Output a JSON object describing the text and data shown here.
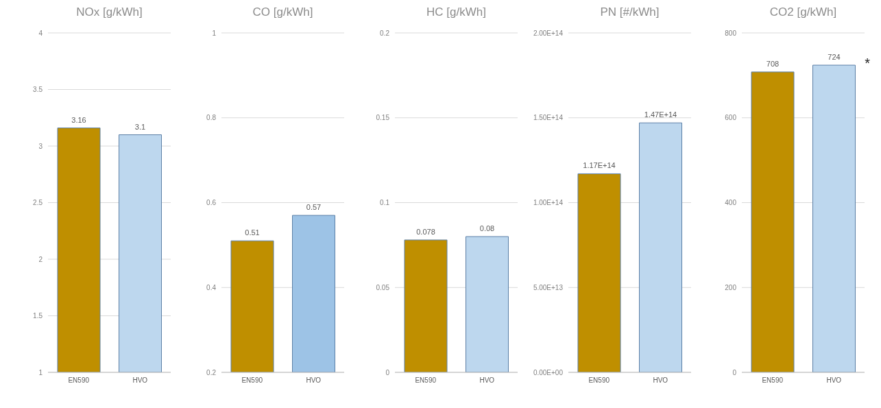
{
  "chart_data": [
    {
      "type": "bar",
      "title": "NOx [g/kWh]",
      "categories": [
        "EN590",
        "HVO"
      ],
      "values": [
        3.16,
        3.1
      ],
      "colors": [
        "#bf8f00",
        "#bdd7ee"
      ],
      "ylim": [
        1,
        4
      ],
      "yticks": [
        1,
        1.5,
        2,
        2.5,
        3,
        3.5,
        4
      ],
      "grid": "y",
      "data_labels": true
    },
    {
      "type": "bar",
      "title": "CO [g/kWh]",
      "categories": [
        "EN590",
        "HVO"
      ],
      "values": [
        0.51,
        0.57
      ],
      "colors": [
        "#bf8f00",
        "#9dc3e6"
      ],
      "ylim": [
        0.2,
        1
      ],
      "yticks": [
        0.2,
        0.4,
        0.6,
        0.8,
        1
      ],
      "grid": "y",
      "data_labels": true
    },
    {
      "type": "bar",
      "title": "HC [g/kWh]",
      "categories": [
        "EN590",
        "HVO"
      ],
      "values": [
        0.078,
        0.08
      ],
      "colors": [
        "#bf8f00",
        "#bdd7ee"
      ],
      "ylim": [
        0,
        0.2
      ],
      "yticks": [
        0,
        0.05,
        0.1,
        0.15,
        0.2
      ],
      "grid": "y",
      "data_labels": true
    },
    {
      "type": "bar",
      "title": "PN [#/kWh]",
      "categories": [
        "EN590",
        "HVO"
      ],
      "values": [
        117000000000000,
        147000000000000
      ],
      "value_labels": [
        "1.17E+14",
        "1.47E+14"
      ],
      "colors": [
        "#bf8f00",
        "#bdd7ee"
      ],
      "ylim": [
        0,
        200000000000000
      ],
      "yticks": [
        {
          "value": 0,
          "label": "0.00E+00"
        },
        {
          "value": 50000000000000,
          "label": "5.00E+13"
        },
        {
          "value": 100000000000000,
          "label": "1.00E+14"
        },
        {
          "value": 150000000000000,
          "label": "1.50E+14"
        },
        {
          "value": 200000000000000,
          "label": "2.00E+14"
        }
      ],
      "grid": "y"
    },
    {
      "type": "bar",
      "title": "CO2 [g/kWh]",
      "categories": [
        "EN590",
        "HVO"
      ],
      "values": [
        708,
        724
      ],
      "colors": [
        "#bf8f00",
        "#bdd7ee"
      ],
      "ylim": [
        0,
        800
      ],
      "yticks": [
        0,
        200,
        400,
        600,
        800
      ],
      "grid": "y",
      "data_labels": true,
      "annotations": [
        {
          "text": "*",
          "x": "HVO",
          "y": 724
        }
      ]
    }
  ]
}
